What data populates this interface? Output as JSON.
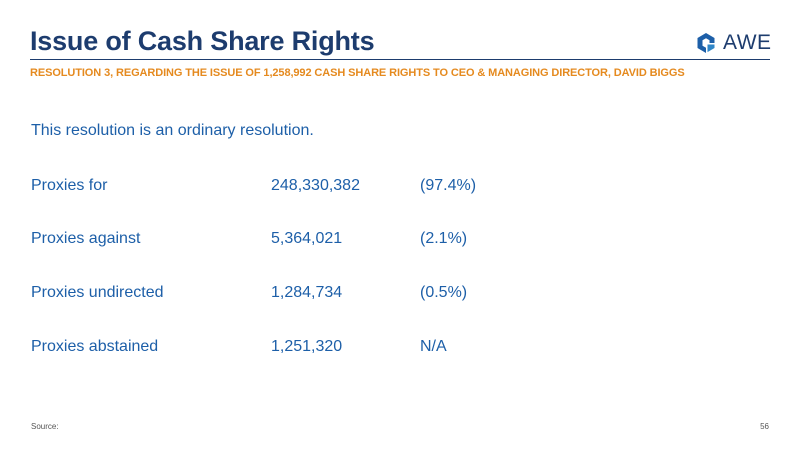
{
  "slide": {
    "title": "Issue of Cash Share Rights",
    "subtitle": "RESOLUTION 3, REGARDING THE ISSUE OF 1,258,992 CASH SHARE RIGHTS TO CEO & MANAGING DIRECTOR, DAVID BIGGS",
    "intro": "This resolution is an ordinary resolution.",
    "rows": [
      {
        "label": "Proxies for",
        "value": "248,330,382",
        "pct": "(97.4%)"
      },
      {
        "label": "Proxies against",
        "value": "5,364,021",
        "pct": "(2.1%)"
      },
      {
        "label": "Proxies undirected",
        "value": "1,284,734",
        "pct": "(0.5%)"
      },
      {
        "label": "Proxies abstained",
        "value": "1,251,320",
        "pct": "N/A"
      }
    ],
    "source_label": "Source:",
    "page_number": "56"
  },
  "logo": {
    "text": "AWE",
    "icon": "awe-logo-icon",
    "color": "#1d5fa8"
  },
  "colors": {
    "title": "#1d3c6e",
    "accent_orange": "#e58a1f",
    "body_blue": "#1d5fa8"
  }
}
